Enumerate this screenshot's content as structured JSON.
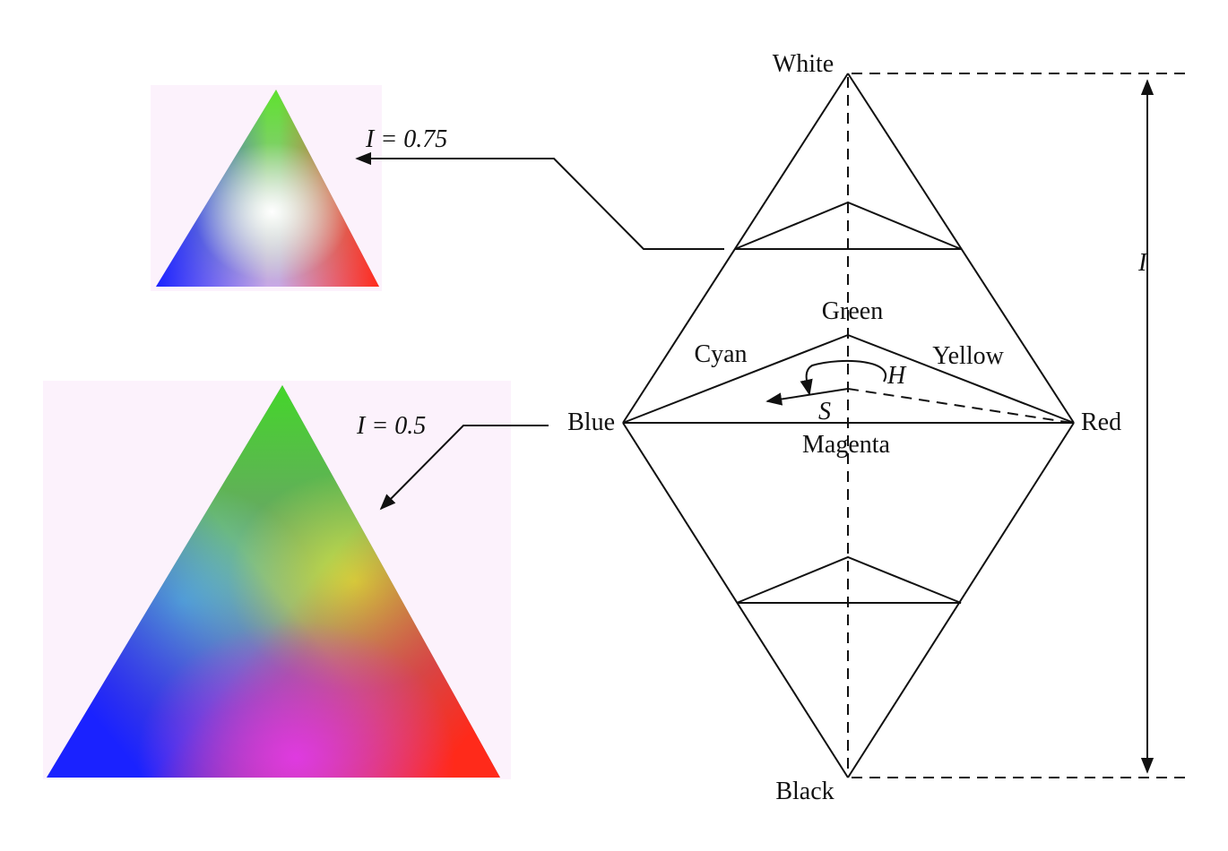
{
  "labels": {
    "white": "White",
    "black": "Black",
    "blue": "Blue",
    "red": "Red",
    "green": "Green",
    "cyan": "Cyan",
    "yellow": "Yellow",
    "magenta": "Magenta",
    "hue": "H",
    "saturation": "S",
    "intensity_axis": "I"
  },
  "slices": {
    "upper": {
      "label": "I = 0.75",
      "intensity": 0.75
    },
    "middle": {
      "label": "I = 0.5",
      "intensity": 0.5
    }
  },
  "colors": {
    "red": "#ff2a1a",
    "green": "#55dd2a",
    "blue": "#1a22ff",
    "magenta": "#e23ae6",
    "cyan": "#6ee8c8",
    "yellow": "#d8ee3a",
    "slice_background": "#fcf2fc",
    "line": "#111111"
  }
}
